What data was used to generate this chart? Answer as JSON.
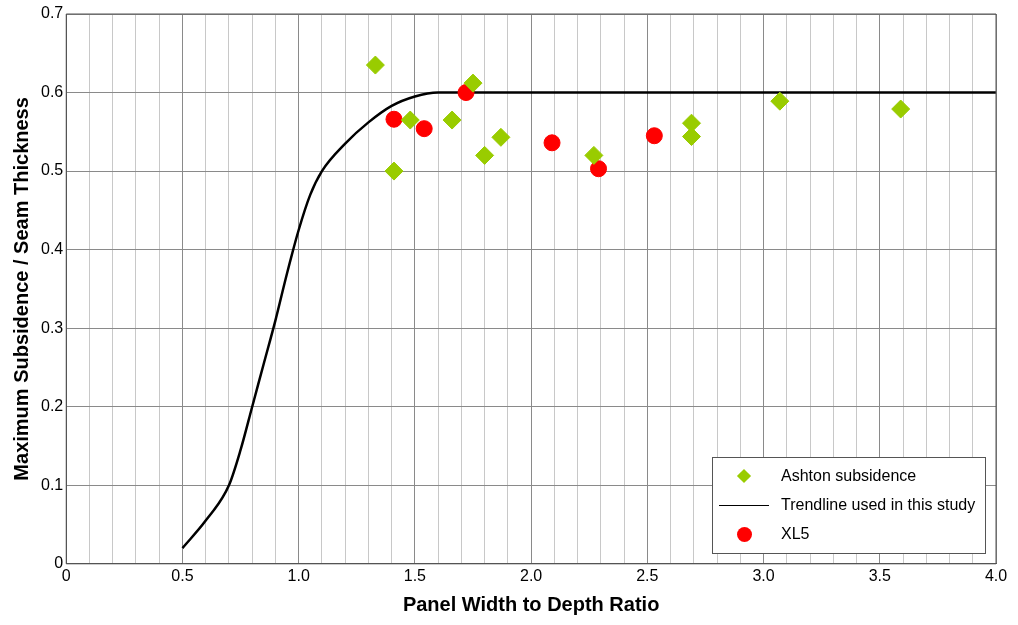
{
  "chart_data": {
    "type": "scatter",
    "xlabel": "Panel Width to Depth Ratio",
    "ylabel": "Maximum Subsidence / Seam Thickness",
    "xlim": [
      0,
      4
    ],
    "ylim": [
      0,
      0.7
    ],
    "xticks": [
      0,
      {
        "value": 0.1,
        "label": null
      },
      {
        "value": 0.2,
        "label": null
      },
      {
        "value": 0.3,
        "label": null
      },
      {
        "value": 0.4,
        "label": null
      },
      0.5,
      {
        "value": 0.6,
        "label": null
      },
      {
        "value": 0.7,
        "label": null
      },
      {
        "value": 0.8,
        "label": null
      },
      {
        "value": 0.9,
        "label": null
      },
      {
        "value": 1,
        "label": "1.0"
      },
      {
        "value": 1.1,
        "label": null
      },
      {
        "value": 1.2,
        "label": null
      },
      {
        "value": 1.3,
        "label": null
      },
      {
        "value": 1.4,
        "label": null
      },
      1.5,
      {
        "value": 1.6,
        "label": null
      },
      {
        "value": 1.7,
        "label": null
      },
      {
        "value": 1.8,
        "label": null
      },
      {
        "value": 1.9,
        "label": null
      },
      {
        "value": 2,
        "label": "2.0"
      },
      {
        "value": 2.1,
        "label": null
      },
      {
        "value": 2.2,
        "label": null
      },
      {
        "value": 2.3,
        "label": null
      },
      {
        "value": 2.4,
        "label": null
      },
      2.5,
      {
        "value": 2.6,
        "label": null
      },
      {
        "value": 2.7,
        "label": null
      },
      {
        "value": 2.8,
        "label": null
      },
      {
        "value": 2.9,
        "label": null
      },
      {
        "value": 3,
        "label": "3.0"
      },
      {
        "value": 3.1,
        "label": null
      },
      {
        "value": 3.2,
        "label": null
      },
      {
        "value": 3.3,
        "label": null
      },
      {
        "value": 3.4,
        "label": null
      },
      3.5,
      {
        "value": 3.6,
        "label": null
      },
      {
        "value": 3.7,
        "label": null
      },
      {
        "value": 3.8,
        "label": null
      },
      {
        "value": 3.9,
        "label": null
      },
      {
        "value": 4,
        "label": "4.0"
      }
    ],
    "yticks": [
      0,
      0.1,
      0.2,
      0.3,
      0.4,
      0.5,
      0.6,
      0.7
    ],
    "grid": true,
    "legend": "bottom right",
    "series": [
      {
        "name": "Ashton subsidence",
        "marker": "diamond",
        "color": "#99cc00",
        "x": [
          1.33,
          1.41,
          1.48,
          1.66,
          1.75,
          1.8,
          1.87,
          2.27,
          2.69,
          2.69,
          3.07,
          3.59
        ],
        "values": [
          0.635,
          0.5,
          0.565,
          0.565,
          0.612,
          0.52,
          0.543,
          0.52,
          0.561,
          0.544,
          0.589,
          0.579
        ]
      },
      {
        "name": "Trendline used in this study",
        "type": "line",
        "marker": "none",
        "color": "#000000",
        "x": [
          0.5,
          0.6,
          0.7,
          0.75,
          0.8,
          0.85,
          0.9,
          0.95,
          1.0,
          1.05,
          1.1,
          1.2,
          1.3,
          1.4,
          1.5,
          1.6,
          1.7,
          4.0
        ],
        "values": [
          0.02,
          0.055,
          0.1,
          0.145,
          0.2,
          0.255,
          0.31,
          0.37,
          0.425,
          0.47,
          0.5,
          0.535,
          0.562,
          0.583,
          0.595,
          0.6,
          0.6,
          0.6
        ]
      },
      {
        "name": "XL5",
        "marker": "circle",
        "color": "#ff0000",
        "x": [
          1.41,
          1.54,
          1.72,
          2.09,
          2.29,
          2.53
        ],
        "values": [
          0.566,
          0.554,
          0.6,
          0.536,
          0.503,
          0.545
        ]
      }
    ]
  }
}
